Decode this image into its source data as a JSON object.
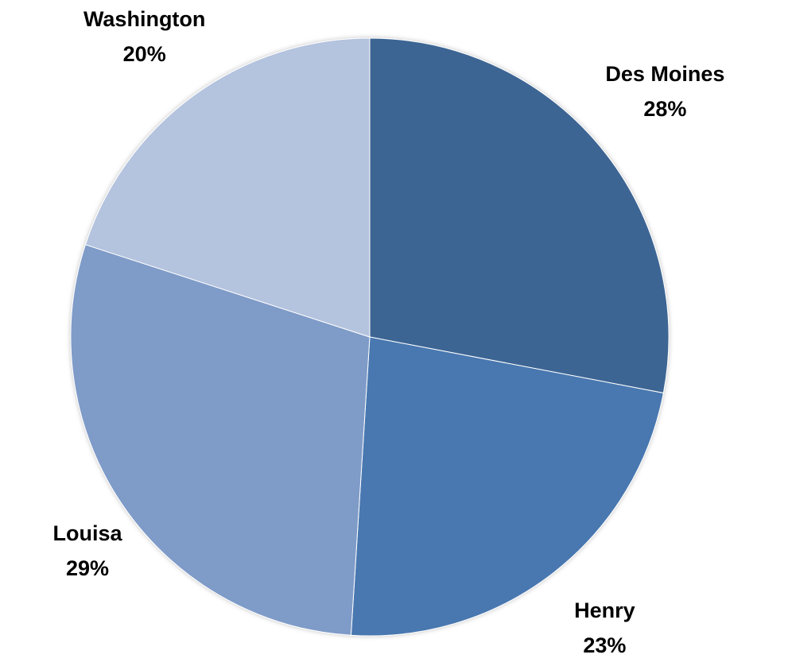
{
  "chart_data": {
    "type": "pie",
    "categories": [
      "Des Moines",
      "Henry",
      "Louisa",
      "Washington"
    ],
    "values": [
      28,
      23,
      29,
      20
    ],
    "value_labels": [
      "28%",
      "23%",
      "29%",
      "20%"
    ],
    "colors": [
      "#3d6594",
      "#4878b0",
      "#7f9bc8",
      "#b4c3de"
    ]
  }
}
